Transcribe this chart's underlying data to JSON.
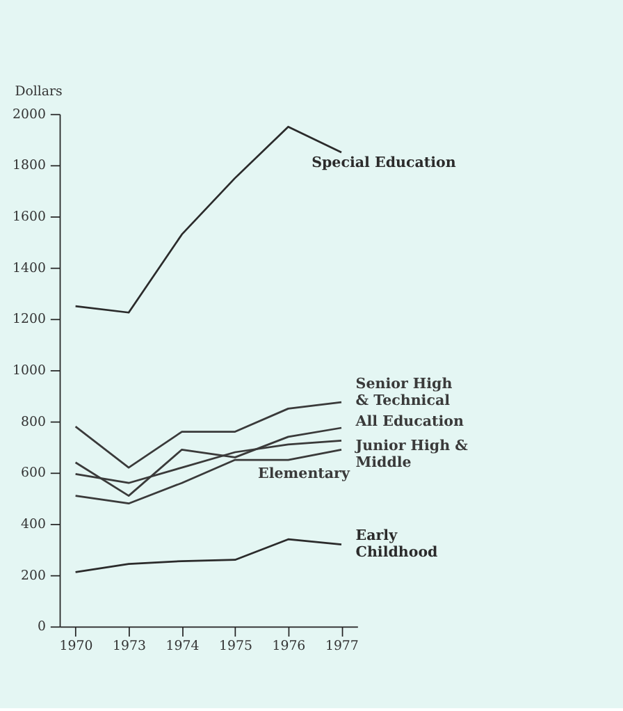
{
  "chart_data": {
    "type": "line",
    "ylabel": "Dollars",
    "categories": [
      "1970",
      "1973",
      "1974",
      "1975",
      "1976",
      "1977"
    ],
    "ylim": [
      0,
      2000
    ],
    "yticks": [
      0,
      200,
      400,
      600,
      800,
      1000,
      1200,
      1400,
      1600,
      1800,
      2000
    ],
    "grid": false,
    "marker": "none",
    "line_style": "solid",
    "series": [
      {
        "name": "Special Education",
        "color": "#2b2b2b",
        "values": [
          1250,
          1225,
          1530,
          1750,
          1950,
          1850
        ]
      },
      {
        "name": "Senior High\n& Technical",
        "color": "#3a3a3a",
        "values": [
          780,
          620,
          760,
          760,
          850,
          875
        ]
      },
      {
        "name": "All Education",
        "color": "#3a3a3a",
        "values": [
          640,
          510,
          690,
          660,
          740,
          775
        ]
      },
      {
        "name": "Junior High &\nMiddle",
        "color": "#3a3a3a",
        "values": [
          595,
          560,
          620,
          680,
          710,
          725
        ]
      },
      {
        "name": "Elementary",
        "color": "#3a3a3a",
        "values": [
          510,
          480,
          560,
          650,
          650,
          690
        ]
      },
      {
        "name": "Early\nChildhood",
        "color": "#2b2b2b",
        "values": [
          212,
          244,
          255,
          260,
          340,
          320
        ]
      }
    ]
  }
}
